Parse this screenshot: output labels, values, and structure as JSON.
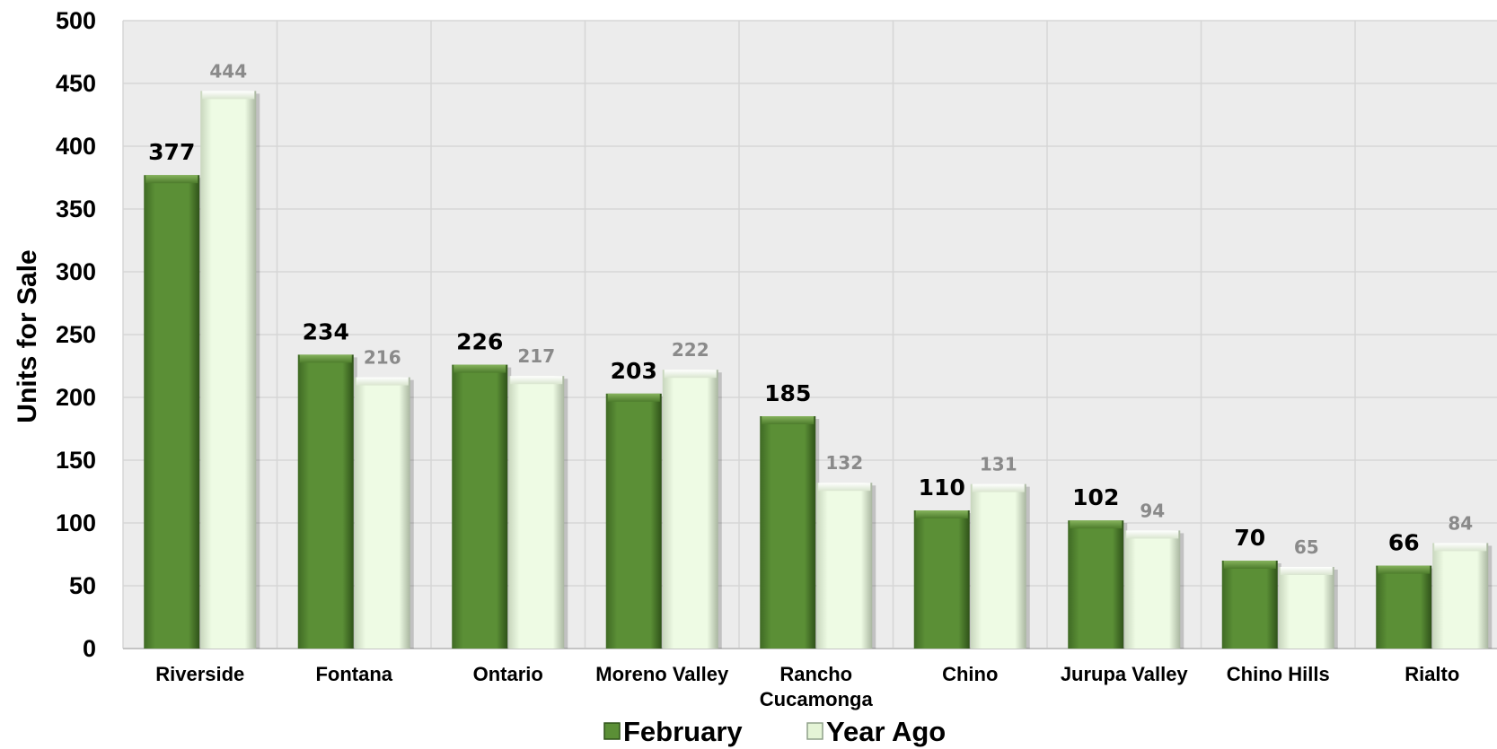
{
  "chart_data": {
    "type": "bar",
    "ylabel": "Units for Sale",
    "ylim": [
      0,
      500
    ],
    "yticks": [
      "0",
      "50",
      "100",
      "150",
      "200",
      "250",
      "300",
      "350",
      "400",
      "450",
      "500"
    ],
    "categories": [
      [
        "Riverside"
      ],
      [
        "Fontana"
      ],
      [
        "Ontario"
      ],
      [
        "Moreno Valley"
      ],
      [
        "Rancho",
        "Cucamonga"
      ],
      [
        "Chino"
      ],
      [
        "Jurupa Valley"
      ],
      [
        "Chino Hills"
      ],
      [
        "Rialto"
      ]
    ],
    "series": [
      {
        "name": "February",
        "values": [
          377,
          234,
          226,
          203,
          185,
          110,
          102,
          70,
          66
        ],
        "color": "#5b8f36"
      },
      {
        "name": "Year Ago",
        "values": [
          444,
          216,
          217,
          222,
          132,
          131,
          94,
          65,
          84
        ],
        "color": "#eefbe4"
      }
    ],
    "grid": true,
    "legend": "bottom-center",
    "plot_background": "#ececec"
  }
}
